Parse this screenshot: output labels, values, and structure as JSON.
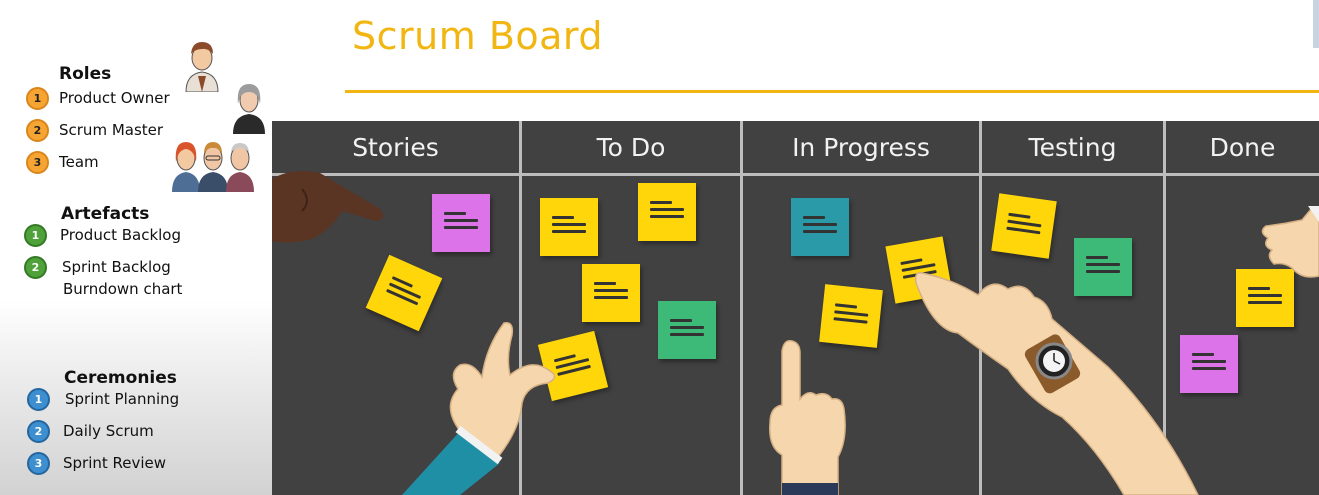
{
  "title": "Scrum Board",
  "colors": {
    "accent": "#f2b612",
    "board": "#414141",
    "note_yellow": "#ffd60a",
    "note_magenta": "#dd73e8",
    "note_green": "#3dba78",
    "note_teal": "#2a9aa8"
  },
  "sidebar": {
    "roles": {
      "title": "Roles",
      "items": [
        {
          "num": "1",
          "label": "Product Owner"
        },
        {
          "num": "2",
          "label": "Scrum Master"
        },
        {
          "num": "3",
          "label": "Team"
        }
      ]
    },
    "artefacts": {
      "title": "Artefacts",
      "items": [
        {
          "num": "1",
          "label": "Product Backlog"
        },
        {
          "num": "2",
          "label": "Sprint Backlog",
          "sub": "Burndown chart"
        }
      ]
    },
    "ceremonies": {
      "title": "Ceremonies",
      "items": [
        {
          "num": "1",
          "label": "Sprint Planning"
        },
        {
          "num": "2",
          "label": "Daily Scrum"
        },
        {
          "num": "3",
          "label": "Sprint Review"
        }
      ]
    }
  },
  "board": {
    "columns": [
      "Stories",
      "To Do",
      "In Progress",
      "Testing",
      "Done"
    ]
  }
}
